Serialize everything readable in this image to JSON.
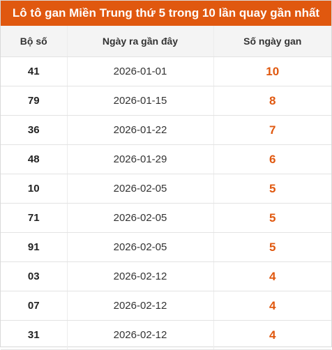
{
  "title": "Lô tô gan Miền Trung thứ 5 trong 10 lần quay gần nhất",
  "colors": {
    "accent": "#e0580f",
    "header_bg": "#f4f4f4"
  },
  "table": {
    "headers": [
      "Bộ số",
      "Ngày ra gần đây",
      "Số ngày gan"
    ],
    "rows": [
      {
        "number": "41",
        "date": "2026-01-01",
        "days": "10"
      },
      {
        "number": "79",
        "date": "2026-01-15",
        "days": "8"
      },
      {
        "number": "36",
        "date": "2026-01-22",
        "days": "7"
      },
      {
        "number": "48",
        "date": "2026-01-29",
        "days": "6"
      },
      {
        "number": "10",
        "date": "2026-02-05",
        "days": "5"
      },
      {
        "number": "71",
        "date": "2026-02-05",
        "days": "5"
      },
      {
        "number": "91",
        "date": "2026-02-05",
        "days": "5"
      },
      {
        "number": "03",
        "date": "2026-02-12",
        "days": "4"
      },
      {
        "number": "07",
        "date": "2026-02-12",
        "days": "4"
      },
      {
        "number": "31",
        "date": "2026-02-12",
        "days": "4"
      }
    ]
  }
}
